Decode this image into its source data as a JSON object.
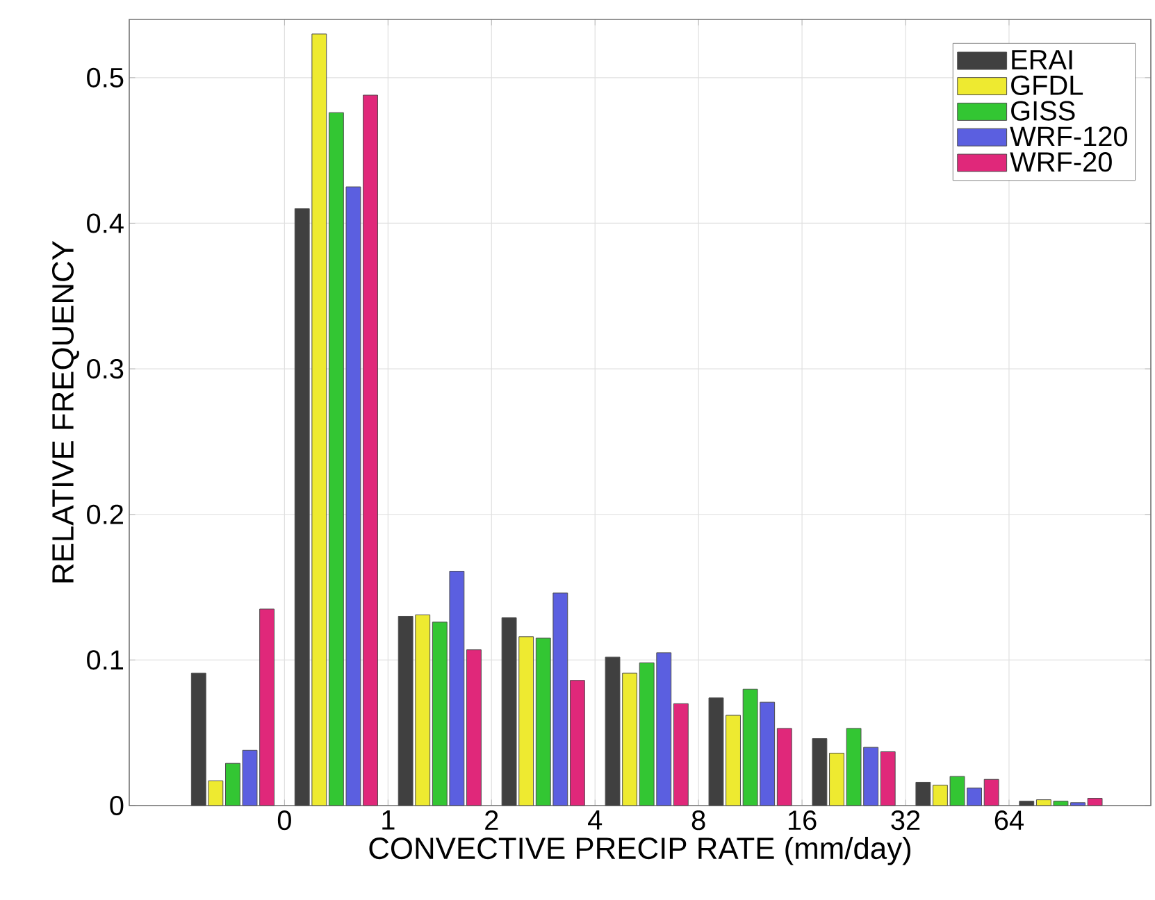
{
  "chart_data": {
    "type": "bar",
    "xlabel": "CONVECTIVE PRECIP RATE (mm/day)",
    "ylabel": "RELATIVE FREQUENCY",
    "categories": [
      null,
      null,
      null,
      null,
      null,
      null,
      null,
      null,
      null
    ],
    "annotations": [
      "0",
      "1",
      "2",
      "4",
      "8",
      "16",
      "32",
      "64"
    ],
    "ylim": [
      0,
      0.54
    ],
    "yticks": [
      0,
      0.1,
      0.2,
      0.3,
      0.4,
      0.5
    ],
    "grid": true,
    "legend": "top right",
    "series": [
      {
        "name": "ERAI",
        "color": "#404040",
        "values": [
          0.091,
          0.41,
          0.13,
          0.129,
          0.102,
          0.074,
          0.046,
          0.016,
          0.003
        ]
      },
      {
        "name": "GFDL",
        "color": "#eeea30",
        "values": [
          0.017,
          0.53,
          0.131,
          0.116,
          0.091,
          0.062,
          0.036,
          0.014,
          0.004
        ]
      },
      {
        "name": "GISS",
        "color": "#33c633",
        "values": [
          0.029,
          0.476,
          0.126,
          0.115,
          0.098,
          0.08,
          0.053,
          0.02,
          0.003
        ]
      },
      {
        "name": "WRF-120",
        "color": "#5b5fe0",
        "values": [
          0.038,
          0.425,
          0.161,
          0.146,
          0.105,
          0.071,
          0.04,
          0.012,
          0.002
        ]
      },
      {
        "name": "WRF-20",
        "color": "#e0287a",
        "values": [
          0.135,
          0.488,
          0.107,
          0.086,
          0.07,
          0.053,
          0.037,
          0.018,
          0.005
        ]
      }
    ]
  }
}
